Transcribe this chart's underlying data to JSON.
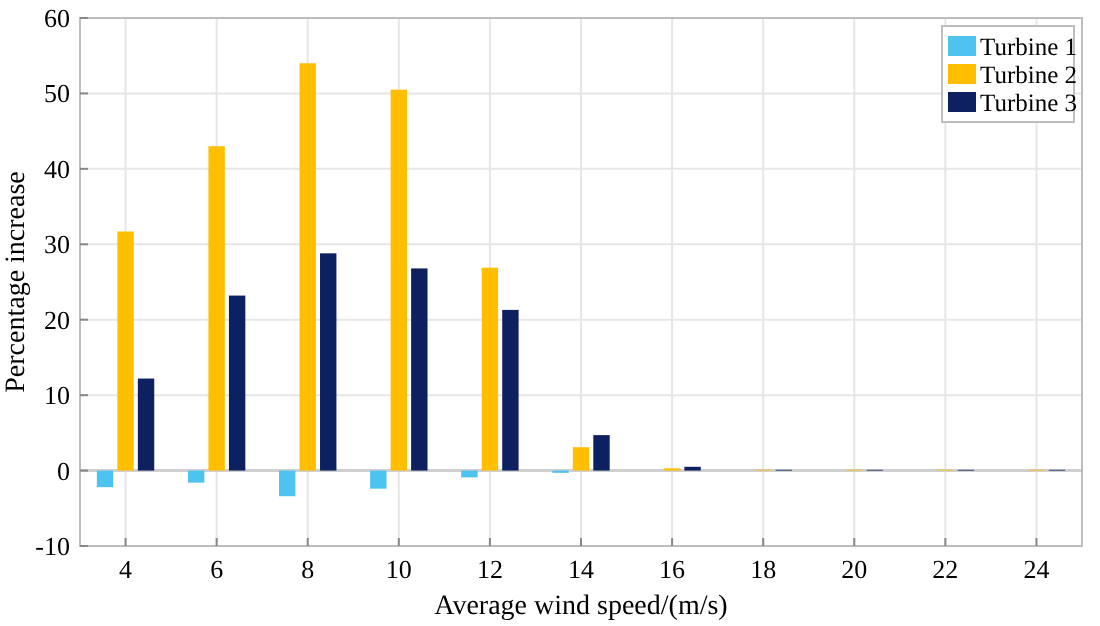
{
  "chart_data": {
    "type": "bar",
    "xlabel": "Average wind speed/(m/s)",
    "ylabel": "Percentage increase",
    "x": [
      4,
      6,
      8,
      10,
      12,
      14,
      16,
      18,
      20,
      22,
      24
    ],
    "series": [
      {
        "name": "Turbine 1",
        "color": "#4dc3f0",
        "values": [
          -2.2,
          -1.6,
          -3.4,
          -2.4,
          -0.9,
          -0.3,
          null,
          null,
          null,
          null,
          null
        ]
      },
      {
        "name": "Turbine 2",
        "color": "#ffbf00",
        "values": [
          31.7,
          43,
          54,
          50.5,
          26.9,
          3.1,
          0.3,
          0.1,
          0.1,
          0.1,
          0.1
        ]
      },
      {
        "name": "Turbine 3",
        "color": "#0d2160",
        "values": [
          12.2,
          23.2,
          28.8,
          26.8,
          21.3,
          4.7,
          0.5,
          0.1,
          0.1,
          0.1,
          0.1
        ]
      }
    ],
    "xlim": [
      3,
      25
    ],
    "xticks": [
      4,
      6,
      8,
      10,
      12,
      14,
      16,
      18,
      20,
      22,
      24
    ],
    "ylim": [
      -10,
      60
    ],
    "yticks": [
      -10,
      0,
      10,
      20,
      30,
      40,
      50,
      60
    ],
    "grid": true,
    "legend": "top right"
  }
}
